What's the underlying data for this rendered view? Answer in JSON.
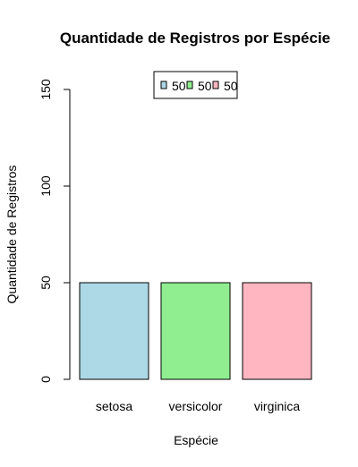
{
  "chart_data": {
    "type": "bar",
    "title": "Quantidade de Registros por Espécie",
    "xlabel": "Espécie",
    "ylabel": "Quantidade de Registros",
    "categories": [
      "setosa",
      "versicolor",
      "virginica"
    ],
    "values": [
      50,
      50,
      50
    ],
    "colors": [
      "#add8e6",
      "#90ee90",
      "#ffb6c1"
    ],
    "ylim": [
      0,
      150
    ],
    "yticks": [
      0,
      50,
      100,
      150
    ],
    "grid": false,
    "legend": {
      "placement": "top-center",
      "entries": [
        "50",
        "50",
        "50"
      ],
      "colors": [
        "#add8e6",
        "#90ee90",
        "#ffb6c1"
      ]
    }
  }
}
